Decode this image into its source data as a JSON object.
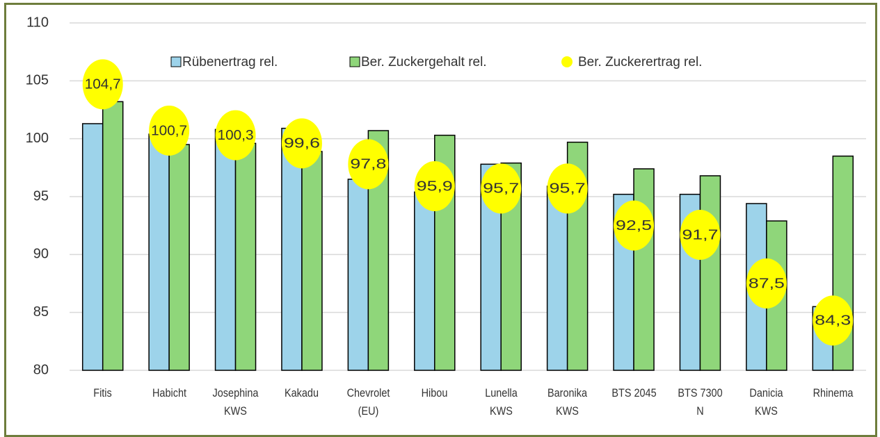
{
  "chart_data": {
    "type": "bar",
    "categories": [
      "Fitis",
      "Habicht",
      "Josephina\nKWS",
      "Kakadu",
      "Chevrolet\n(EU)",
      "Hibou",
      "Lunella\nKWS",
      "Baronika\nKWS",
      "BTS 2045",
      "BTS 7300\nN",
      "Danicia\nKWS",
      "Rhinema"
    ],
    "series": [
      {
        "name": "Rübenertrag rel.",
        "color": "#9dd3ea",
        "type": "bar",
        "values": [
          101.3,
          100.4,
          100.8,
          100.9,
          96.5,
          95.4,
          97.8,
          95.9,
          95.2,
          95.2,
          94.4,
          85.5
        ]
      },
      {
        "name": "Ber. Zuckergehalt rel.",
        "color": "#8fd67a",
        "type": "bar",
        "values": [
          103.2,
          99.5,
          99.6,
          98.9,
          100.7,
          100.3,
          97.9,
          99.7,
          97.4,
          96.8,
          92.9,
          98.5
        ]
      },
      {
        "name": "Ber. Zuckerertrag rel.",
        "color": "#ffff00",
        "type": "scatter",
        "values": [
          104.7,
          100.7,
          100.3,
          99.6,
          97.8,
          95.9,
          95.7,
          95.7,
          92.5,
          91.7,
          87.5,
          84.3
        ],
        "value_labels": [
          "104,7",
          "100,7",
          "100,3",
          "99,6",
          "97,8",
          "95,9",
          "95,7",
          "95,7",
          "92,5",
          "91,7",
          "87,5",
          "84,3"
        ]
      }
    ],
    "ylim": [
      80,
      110
    ],
    "yticks": [
      80,
      85,
      90,
      95,
      100,
      105,
      110
    ],
    "grid": true
  }
}
